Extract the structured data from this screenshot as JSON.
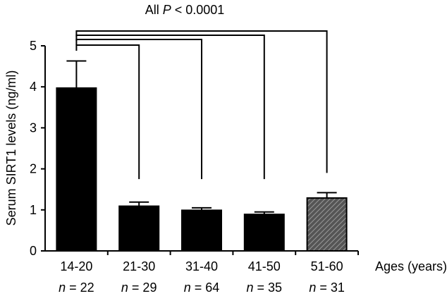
{
  "chart_data": {
    "type": "bar",
    "title_prefix": "All ",
    "title_italic": "P",
    "title_suffix": " < 0.0001",
    "ylabel": "Serum SIRT1 levels (ng/ml)",
    "xlabel": "Ages (years)",
    "ylim": [
      0,
      5
    ],
    "yticks": [
      "0",
      "1",
      "2",
      "3",
      "4",
      "5"
    ],
    "categories": [
      "14-20",
      "21-30",
      "31-40",
      "41-50",
      "51-60"
    ],
    "n_prefix": "n",
    "n_labels": [
      "= 22",
      "= 29",
      "= 64",
      "= 35",
      "= 31"
    ],
    "values": [
      3.97,
      1.09,
      0.99,
      0.89,
      1.29
    ],
    "errors": [
      0.66,
      0.1,
      0.06,
      0.06,
      0.13
    ],
    "fills": [
      "solid",
      "solid",
      "solid",
      "solid",
      "hatched"
    ],
    "significance_brackets": [
      {
        "from": "14-20",
        "to": "21-30",
        "end_y": 1.75
      },
      {
        "from": "14-20",
        "to": "31-40",
        "end_y": 1.75
      },
      {
        "from": "14-20",
        "to": "41-50",
        "end_y": 1.75
      },
      {
        "from": "14-20",
        "to": "51-60",
        "end_y": 1.9
      }
    ],
    "grid": false,
    "colors": {
      "bar": "#000000",
      "hatch_bg": "#555555",
      "hatch_line": "#9a9a9a"
    }
  }
}
